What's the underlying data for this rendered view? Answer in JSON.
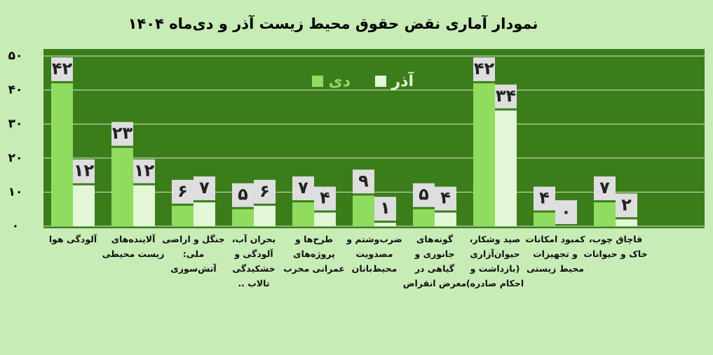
{
  "chart_data": {
    "type": "bar",
    "title": "نمودار آماری نقض حقوق محیط زیست آذر و دی‌ماه ۱۴۰۴",
    "categories": [
      "آلودگی هوا",
      "آلاینده‌های\nزیست محیطی",
      "جنگل و اراضی\nملی:\nآتش‌سوزی",
      "بحران آب،\nآلودگی و\nخشکیدگی\nتالاب ..",
      "طرح‌ها و\nپروژه‌های\nعمرانی مخرب",
      "ضرب‌وشتم و\nمصدویت\nمحیط‌بانان",
      "گونه‌های\nجانوری و\nگیاهی در\nمعرض انقراض",
      "صید وشکار،\nحیوان‌آزاری\n(بازداشت و\nاحکام صادره)",
      "کمبود امکانات\nو تجهیزات\nمحیط زیستی",
      "قاچاق چوب،\nخاک و حیوانات"
    ],
    "series": [
      {
        "name": "دی",
        "color": "#8fdc5e",
        "values": [
          42,
          23,
          6,
          5,
          7,
          9,
          5,
          42,
          4,
          7
        ],
        "value_labels": [
          "۴۲",
          "۲۳",
          "۶",
          "۵",
          "۷",
          "۹",
          "۵",
          "۴۲",
          "۴",
          "۷"
        ]
      },
      {
        "name": "آذر",
        "color": "#e3f6d6",
        "values": [
          12,
          12,
          7,
          6,
          4,
          1,
          4,
          34,
          0,
          2
        ],
        "value_labels": [
          "۱۲",
          "۱۲",
          "۷",
          "۶",
          "۴",
          "۱",
          "۴",
          "۳۴",
          "۰",
          "۲"
        ]
      }
    ],
    "ylim": [
      0,
      50
    ],
    "yticks": [
      {
        "value": 0,
        "label": "۰"
      },
      {
        "value": 10,
        "label": "۱۰"
      },
      {
        "value": 20,
        "label": "۲۰"
      },
      {
        "value": 30,
        "label": "۳۰"
      },
      {
        "value": 40,
        "label": "۴۰"
      },
      {
        "value": 50,
        "label": "۵۰"
      }
    ],
    "grid": true
  }
}
